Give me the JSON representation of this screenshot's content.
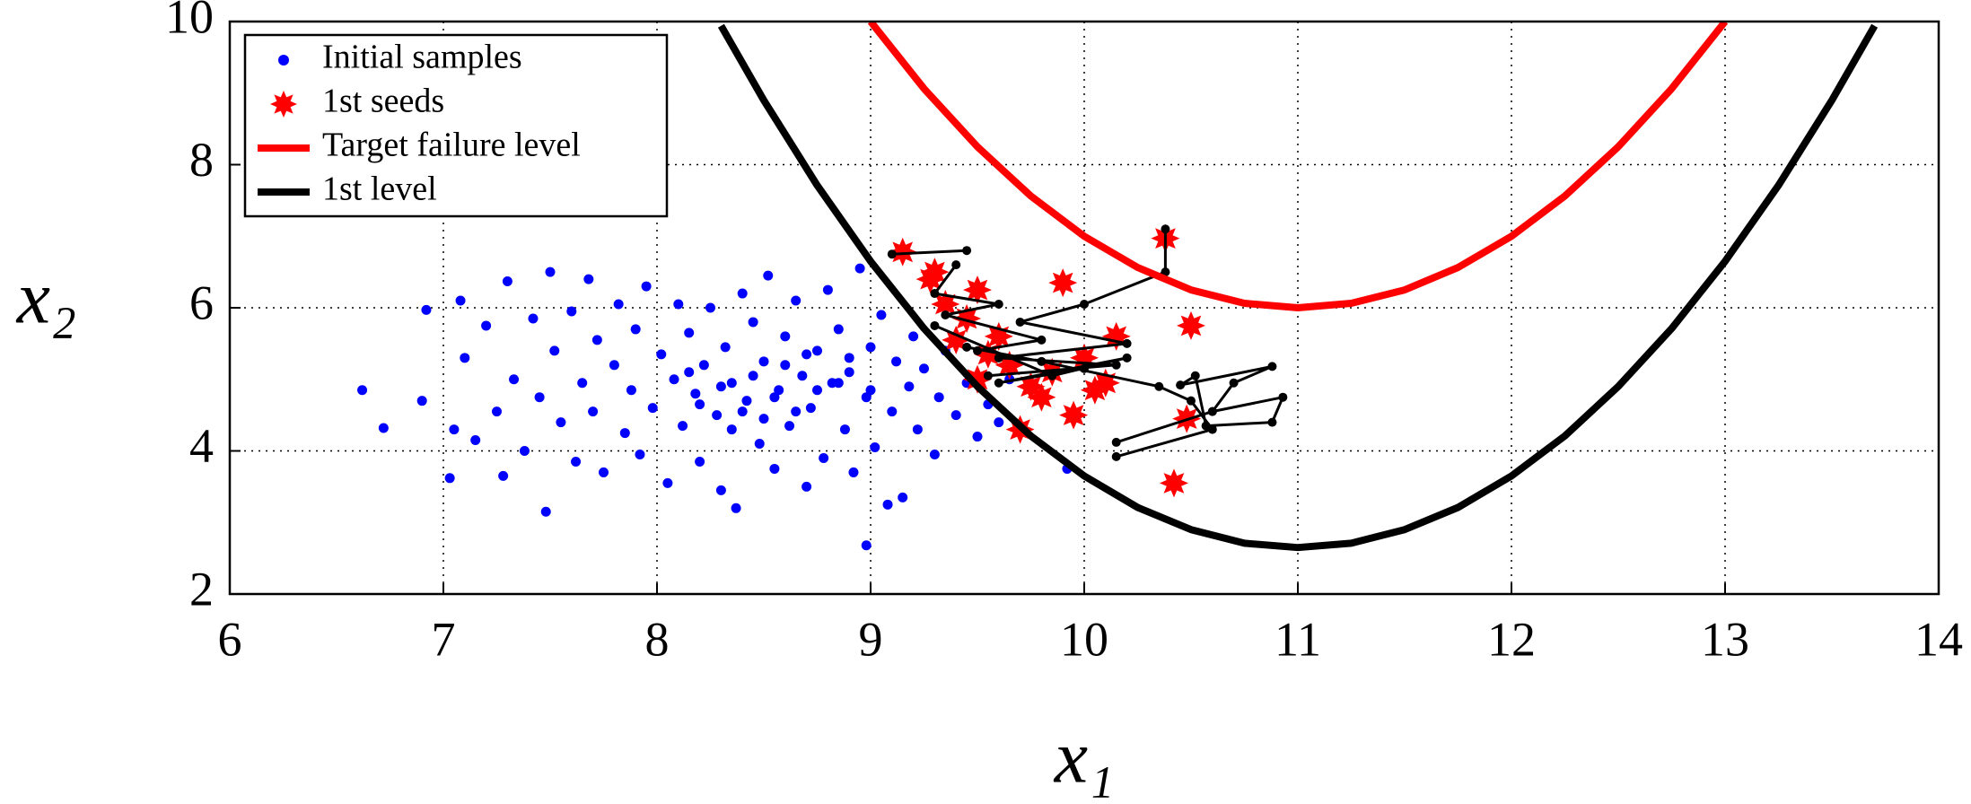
{
  "chart_data": {
    "type": "scatter",
    "xlabel": "x₁",
    "ylabel": "x₂",
    "xlim": [
      6,
      14
    ],
    "ylim": [
      2,
      10
    ],
    "xticks": [
      6,
      7,
      8,
      9,
      10,
      11,
      12,
      13,
      14
    ],
    "yticks": [
      2,
      4,
      6,
      8,
      10
    ],
    "grid": true,
    "legend": "upper left",
    "series": [
      {
        "name": "Initial samples",
        "color": "#0000ff",
        "marker": "dot",
        "line": false,
        "x": [
          6.62,
          6.72,
          6.92,
          6.9,
          7.03,
          7.05,
          7.08,
          7.1,
          7.15,
          7.2,
          7.25,
          7.28,
          7.3,
          7.33,
          7.38,
          7.42,
          7.45,
          7.48,
          7.5,
          7.52,
          7.55,
          7.6,
          7.62,
          7.65,
          7.68,
          7.7,
          7.72,
          7.75,
          7.8,
          7.82,
          7.85,
          7.88,
          7.9,
          7.92,
          7.95,
          7.98,
          8.02,
          8.05,
          8.08,
          8.1,
          8.12,
          8.15,
          8.18,
          8.2,
          8.22,
          8.25,
          8.28,
          8.3,
          8.32,
          8.35,
          8.37,
          8.4,
          8.42,
          8.45,
          8.48,
          8.5,
          8.52,
          8.55,
          8.57,
          8.6,
          8.62,
          8.65,
          8.68,
          8.7,
          8.72,
          8.75,
          8.78,
          8.8,
          8.82,
          8.85,
          8.88,
          8.9,
          8.92,
          8.95,
          8.98,
          9.0,
          9.02,
          9.05,
          9.08,
          9.1,
          9.12,
          9.15,
          9.18,
          9.2,
          9.22,
          9.25,
          9.3,
          9.32,
          9.35,
          9.4,
          9.45,
          9.5,
          9.55,
          9.6,
          9.65,
          8.98,
          9.92,
          8.4,
          8.55,
          8.3,
          8.65,
          8.75,
          8.45,
          8.2,
          8.6,
          8.35,
          8.85,
          8.5,
          9.0,
          8.15,
          8.7,
          8.9
        ],
        "values": [
          4.85,
          4.32,
          5.97,
          4.7,
          3.62,
          4.3,
          6.1,
          5.3,
          4.15,
          5.75,
          4.55,
          3.65,
          6.37,
          5.0,
          4.0,
          5.85,
          4.75,
          3.15,
          6.5,
          5.4,
          4.4,
          5.95,
          3.85,
          4.95,
          6.4,
          4.55,
          5.55,
          3.7,
          5.2,
          6.05,
          4.25,
          4.85,
          5.7,
          3.95,
          6.3,
          4.6,
          5.35,
          3.55,
          5.0,
          6.05,
          4.35,
          5.65,
          4.8,
          3.85,
          5.2,
          6.0,
          4.5,
          3.45,
          5.45,
          4.95,
          3.2,
          6.2,
          4.7,
          5.8,
          4.1,
          5.25,
          6.45,
          3.75,
          4.85,
          5.6,
          4.35,
          6.1,
          5.05,
          3.5,
          4.6,
          5.4,
          3.9,
          6.25,
          4.95,
          5.7,
          4.3,
          5.1,
          3.7,
          6.55,
          4.75,
          5.45,
          4.05,
          5.9,
          3.25,
          4.55,
          5.25,
          3.35,
          4.9,
          5.6,
          4.3,
          5.15,
          3.95,
          4.75,
          5.4,
          4.5,
          4.95,
          4.2,
          4.65,
          4.4,
          5.0,
          2.68,
          3.75,
          4.55,
          4.75,
          4.9,
          4.55,
          4.85,
          5.05,
          4.65,
          5.2,
          4.3,
          4.95,
          4.45,
          4.85,
          5.1,
          5.35,
          5.3
        ]
      },
      {
        "name": "1st seeds",
        "color": "#ff0000",
        "marker": "star",
        "line": false,
        "x": [
          9.15,
          9.28,
          9.3,
          9.35,
          9.45,
          9.5,
          9.4,
          9.55,
          9.6,
          9.65,
          9.7,
          9.75,
          9.8,
          9.9,
          9.95,
          10.05,
          10.1,
          10.15,
          10.38,
          10.42,
          10.48,
          10.5,
          9.85,
          10.0,
          9.5
        ],
        "values": [
          6.78,
          6.4,
          6.5,
          6.05,
          5.85,
          6.25,
          5.55,
          5.35,
          5.6,
          5.2,
          4.3,
          4.9,
          4.75,
          6.35,
          4.5,
          4.85,
          4.95,
          5.6,
          6.97,
          3.55,
          4.45,
          5.75,
          5.1,
          5.3,
          5.0
        ]
      },
      {
        "color": "#000000",
        "marker": "small",
        "line": true,
        "width": 3,
        "x": [
          9.1,
          9.45,
          null,
          9.4,
          9.3,
          9.6,
          9.35,
          9.8,
          9.5,
          null,
          10.38,
          10.38,
          10.0,
          9.7,
          10.2,
          9.6,
          10.15,
          9.55,
          null,
          10.15,
          10.6,
          10.7,
          10.88,
          10.45,
          10.52,
          10.57,
          10.88,
          10.93,
          10.6,
          null,
          10.15,
          10.6,
          10.5,
          10.35,
          9.8,
          9.45,
          null,
          9.3,
          9.85,
          10.2,
          9.6,
          10.0
        ],
        "values": [
          6.75,
          6.8,
          null,
          6.6,
          6.2,
          6.05,
          5.9,
          5.55,
          5.4,
          null,
          7.1,
          6.5,
          6.05,
          5.8,
          5.5,
          5.3,
          5.2,
          5.05,
          null,
          4.12,
          4.55,
          4.95,
          5.18,
          4.92,
          5.05,
          4.35,
          4.4,
          4.75,
          4.55,
          null,
          3.92,
          4.3,
          4.7,
          4.9,
          5.25,
          5.45,
          null,
          5.75,
          5.05,
          5.3,
          4.95,
          5.15
        ]
      },
      {
        "name": "Target failure level",
        "color": "#ff0000",
        "marker": "none",
        "line": true,
        "width": 8,
        "x": [
          9,
          9.25,
          9.5,
          9.75,
          10,
          10.25,
          10.5,
          10.75,
          11,
          11.25,
          11.5,
          11.75,
          12,
          12.25,
          12.5,
          12.75,
          13
        ],
        "values": [
          10,
          9.0625,
          8.25,
          7.5625,
          7,
          6.5625,
          6.25,
          6.0625,
          6,
          6.0625,
          6.25,
          6.5625,
          7,
          7.5625,
          8.25,
          9.0625,
          10
        ]
      },
      {
        "name": "1st level",
        "color": "#000000",
        "marker": "none",
        "line": true,
        "width": 8,
        "x": [
          8.3,
          8.5,
          8.75,
          9,
          9.25,
          9.5,
          9.75,
          10,
          10.25,
          10.5,
          10.75,
          11,
          11.25,
          11.5,
          11.75,
          12,
          12.25,
          12.5,
          12.75,
          13,
          13.25,
          13.5,
          13.7
        ],
        "values": [
          9.94,
          8.9,
          7.71,
          6.65,
          5.71,
          4.9,
          4.21,
          3.65,
          3.21,
          2.9,
          2.71,
          2.65,
          2.71,
          2.9,
          3.21,
          3.65,
          4.21,
          4.9,
          5.71,
          6.65,
          7.71,
          8.9,
          9.94
        ]
      }
    ]
  }
}
